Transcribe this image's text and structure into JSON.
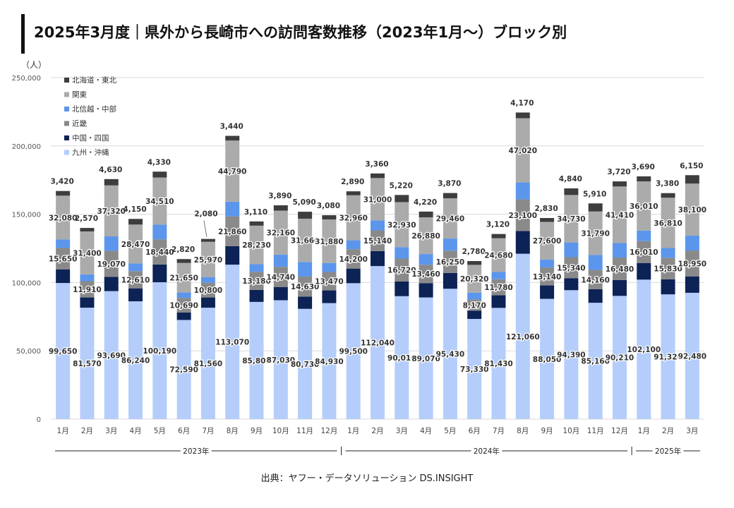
{
  "title": "2025年3月度｜県外から長崎市への訪問客数推移（2023年1月〜）ブロック別",
  "source": "出典：ヤフー・データソリューション DS.INSIGHT",
  "chart_data": {
    "type": "bar",
    "stacked": true,
    "ylabel": "（人）",
    "ylim": [
      0,
      250000
    ],
    "yticks": [
      0,
      50000,
      100000,
      150000,
      200000,
      250000
    ],
    "ytick_labels": [
      "0",
      "50,000",
      "100,000",
      "150,000",
      "200,000",
      "250,000"
    ],
    "grid": true,
    "legend_position": "top-left",
    "categories": [
      "1月",
      "2月",
      "3月",
      "4月",
      "5月",
      "6月",
      "7月",
      "8月",
      "9月",
      "10月",
      "11月",
      "12月",
      "1月",
      "2月",
      "3月",
      "4月",
      "5月",
      "6月",
      "7月",
      "8月",
      "9月",
      "10月",
      "11月",
      "12月",
      "1月",
      "2月",
      "3月"
    ],
    "year_groups": [
      {
        "label": "2023年",
        "start": 0,
        "end": 11
      },
      {
        "label": "2024年",
        "start": 12,
        "end": 23
      },
      {
        "label": "2025年",
        "start": 24,
        "end": 26
      }
    ],
    "series": [
      {
        "name": "九州・沖縄",
        "color": "#b4cdfb",
        "labeled": true,
        "values": [
          99650,
          81570,
          93690,
          86240,
          100190,
          72590,
          81560,
          113070,
          85800,
          87030,
          80730,
          84930,
          99500,
          112040,
          90010,
          89070,
          95430,
          73330,
          81430,
          121060,
          88050,
          94390,
          85160,
          90210,
          102100,
          91320,
          92480
        ]
      },
      {
        "name": "中国・四国",
        "color": "#0d2255",
        "labeled": false,
        "values": [
          10000,
          7500,
          10500,
          9500,
          13000,
          5500,
          7500,
          13500,
          8800,
          9700,
          9000,
          9300,
          10700,
          11000,
          10800,
          10500,
          11600,
          6100,
          9200,
          16700,
          9800,
          8800,
          9900,
          11600,
          12200,
          11000,
          12000
        ]
      },
      {
        "name": "近畿",
        "color": "#8a8a8a",
        "labeled": true,
        "values": [
          15650,
          11910,
          19070,
          12610,
          18440,
          10690,
          10800,
          21860,
          13180,
          14740,
          14630,
          13470,
          14200,
          15140,
          16720,
          13460,
          16250,
          8170,
          11780,
          23100,
          13140,
          15340,
          14160,
          16480,
          16010,
          15830,
          18950
        ]
      },
      {
        "name": "北信越・中部",
        "color": "#5b96ec",
        "labeled": false,
        "values": [
          6200,
          5000,
          10500,
          5600,
          10700,
          3900,
          4000,
          10700,
          5600,
          9000,
          10700,
          6600,
          6500,
          7300,
          8400,
          7800,
          8900,
          5000,
          5300,
          12400,
          5800,
          10800,
          11000,
          10600,
          7700,
          7100,
          10900
        ]
      },
      {
        "name": "関東",
        "color": "#ababab",
        "labeled": true,
        "values": [
          32080,
          31400,
          37320,
          28470,
          34510,
          21650,
          25970,
          44790,
          28230,
          32160,
          31660,
          31880,
          32960,
          31000,
          32930,
          26880,
          29460,
          20320,
          24680,
          47020,
          27600,
          34730,
          31790,
          41410,
          36010,
          36810,
          38100
        ]
      },
      {
        "name": "北海道・東北",
        "color": "#3d3d3d",
        "labeled": true,
        "values": [
          3420,
          2570,
          4630,
          4150,
          4330,
          2820,
          2080,
          3440,
          3110,
          3890,
          5090,
          3080,
          2890,
          3360,
          5220,
          4220,
          3870,
          2780,
          3120,
          4170,
          2830,
          4840,
          5910,
          3720,
          3690,
          3380,
          6150
        ]
      }
    ]
  }
}
